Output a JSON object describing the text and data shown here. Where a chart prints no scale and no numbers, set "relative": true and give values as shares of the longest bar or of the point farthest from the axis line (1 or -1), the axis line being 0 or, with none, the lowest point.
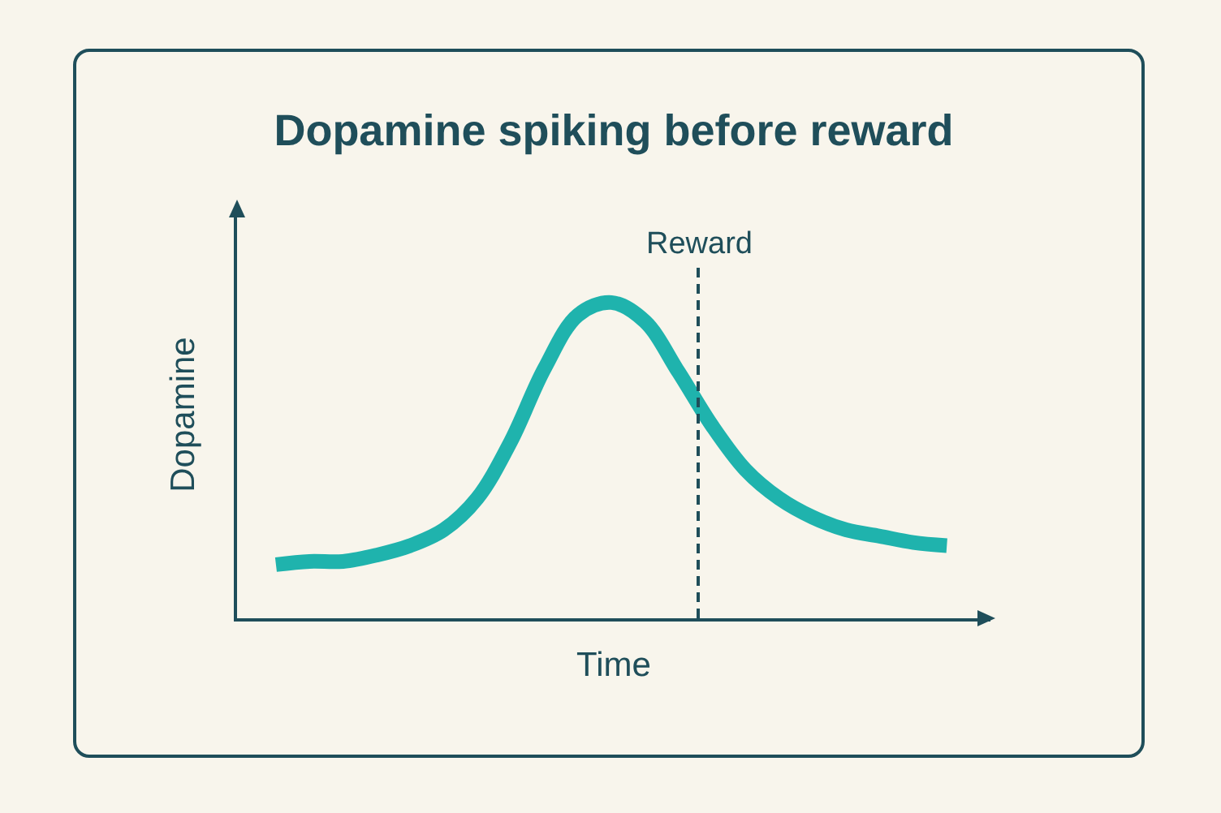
{
  "chart_data": {
    "type": "line",
    "title": "Dopamine spiking before reward",
    "xlabel": "Time",
    "ylabel": "Dopamine",
    "relative": true,
    "categories": [
      null,
      null,
      null,
      null,
      null,
      null,
      null,
      null,
      null,
      null,
      null,
      null,
      null,
      null,
      null,
      null,
      null,
      null,
      null,
      null,
      null
    ],
    "series": [
      {
        "color": "#1fb3ad",
        "values": [
          0.17,
          0.18,
          0.18,
          0.2,
          0.23,
          0.28,
          0.38,
          0.56,
          0.79,
          0.96,
          1,
          0.94,
          0.78,
          0.61,
          0.47,
          0.38,
          0.32,
          0.28,
          0.26,
          0.24,
          0.23
        ]
      }
    ],
    "annotations": [
      "Reward"
    ],
    "marker": "none",
    "line_style": "solid"
  }
}
